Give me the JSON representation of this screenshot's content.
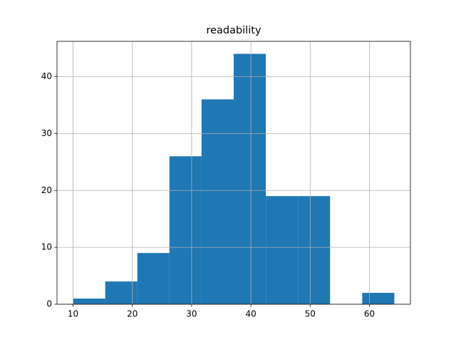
{
  "chart_data": {
    "type": "histogram",
    "title": "readability",
    "bins": [
      10,
      15.42,
      20.84,
      26.26,
      31.68,
      37.1,
      42.52,
      47.94,
      53.36,
      58.78,
      64.2
    ],
    "values": [
      1,
      4,
      9,
      26,
      36,
      44,
      19,
      19,
      0,
      2
    ],
    "color": "#1f77b4",
    "xlim": [
      7.29,
      66.91
    ],
    "xticks": [
      10,
      20,
      30,
      40,
      50,
      60
    ],
    "ylim": [
      0,
      46.2
    ],
    "yticks": [
      0,
      10,
      20,
      30,
      40
    ],
    "grid": true
  }
}
